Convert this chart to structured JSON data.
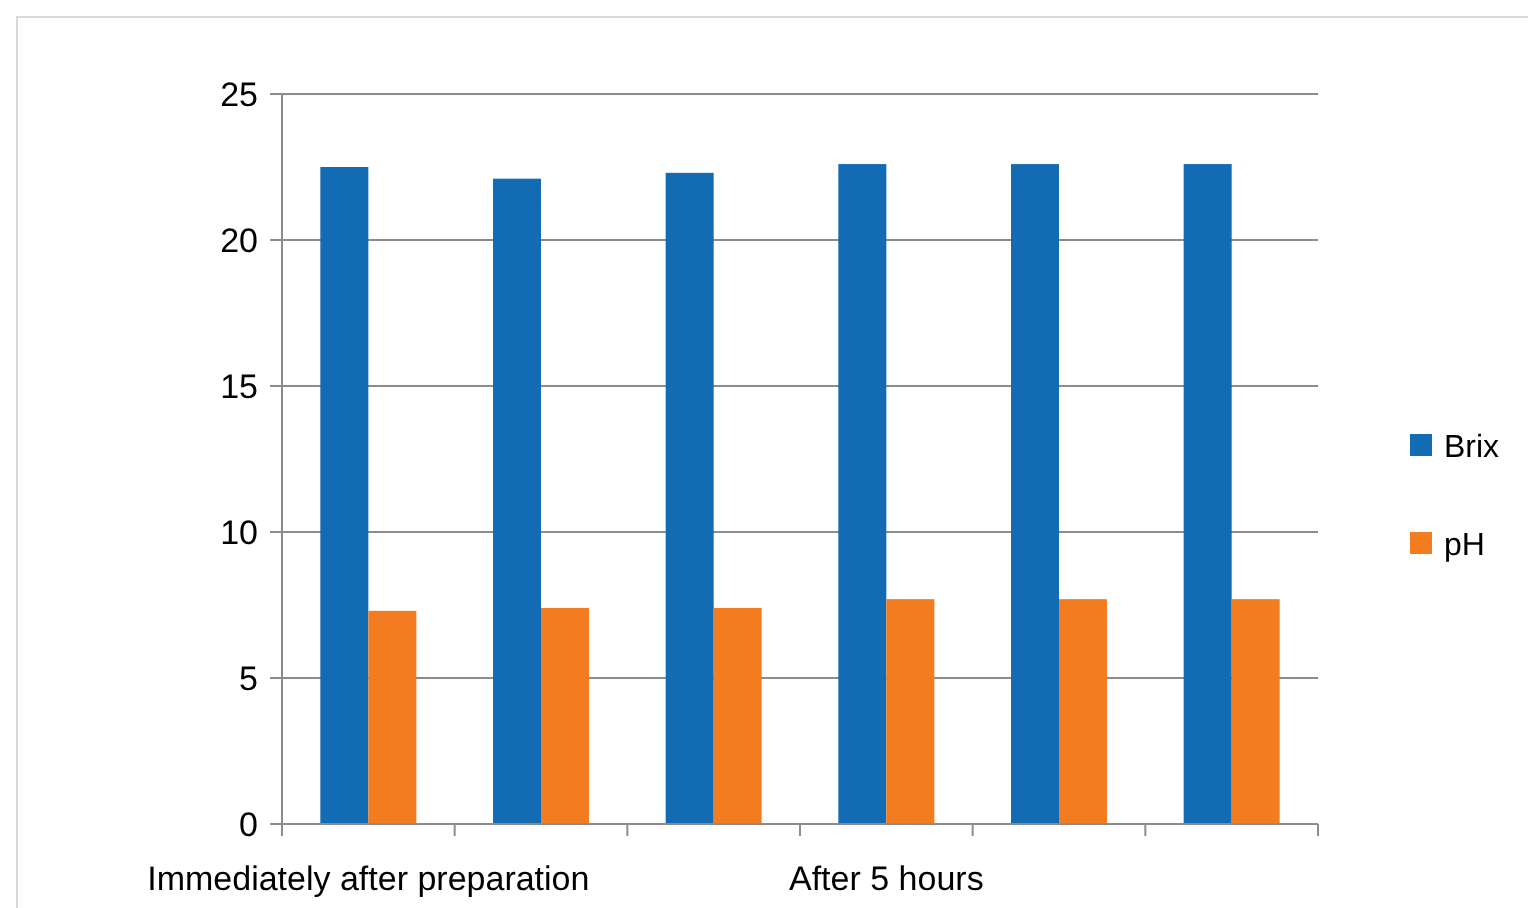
{
  "chart_data": {
    "type": "bar",
    "categories": [
      "Immediately after preparation",
      null,
      null,
      "After 5 hours",
      null,
      null
    ],
    "series": [
      {
        "name": "Brix",
        "color": "#136bb4",
        "values": [
          22.5,
          22.1,
          22.3,
          22.6,
          22.6,
          22.6
        ]
      },
      {
        "name": "pH",
        "color": "#f47c20",
        "values": [
          7.3,
          7.4,
          7.4,
          7.7,
          7.7,
          7.7
        ]
      }
    ],
    "ylim": [
      0,
      25
    ],
    "yticks": [
      0,
      5,
      10,
      15,
      20,
      25
    ],
    "grid": "y",
    "legend": "right"
  }
}
